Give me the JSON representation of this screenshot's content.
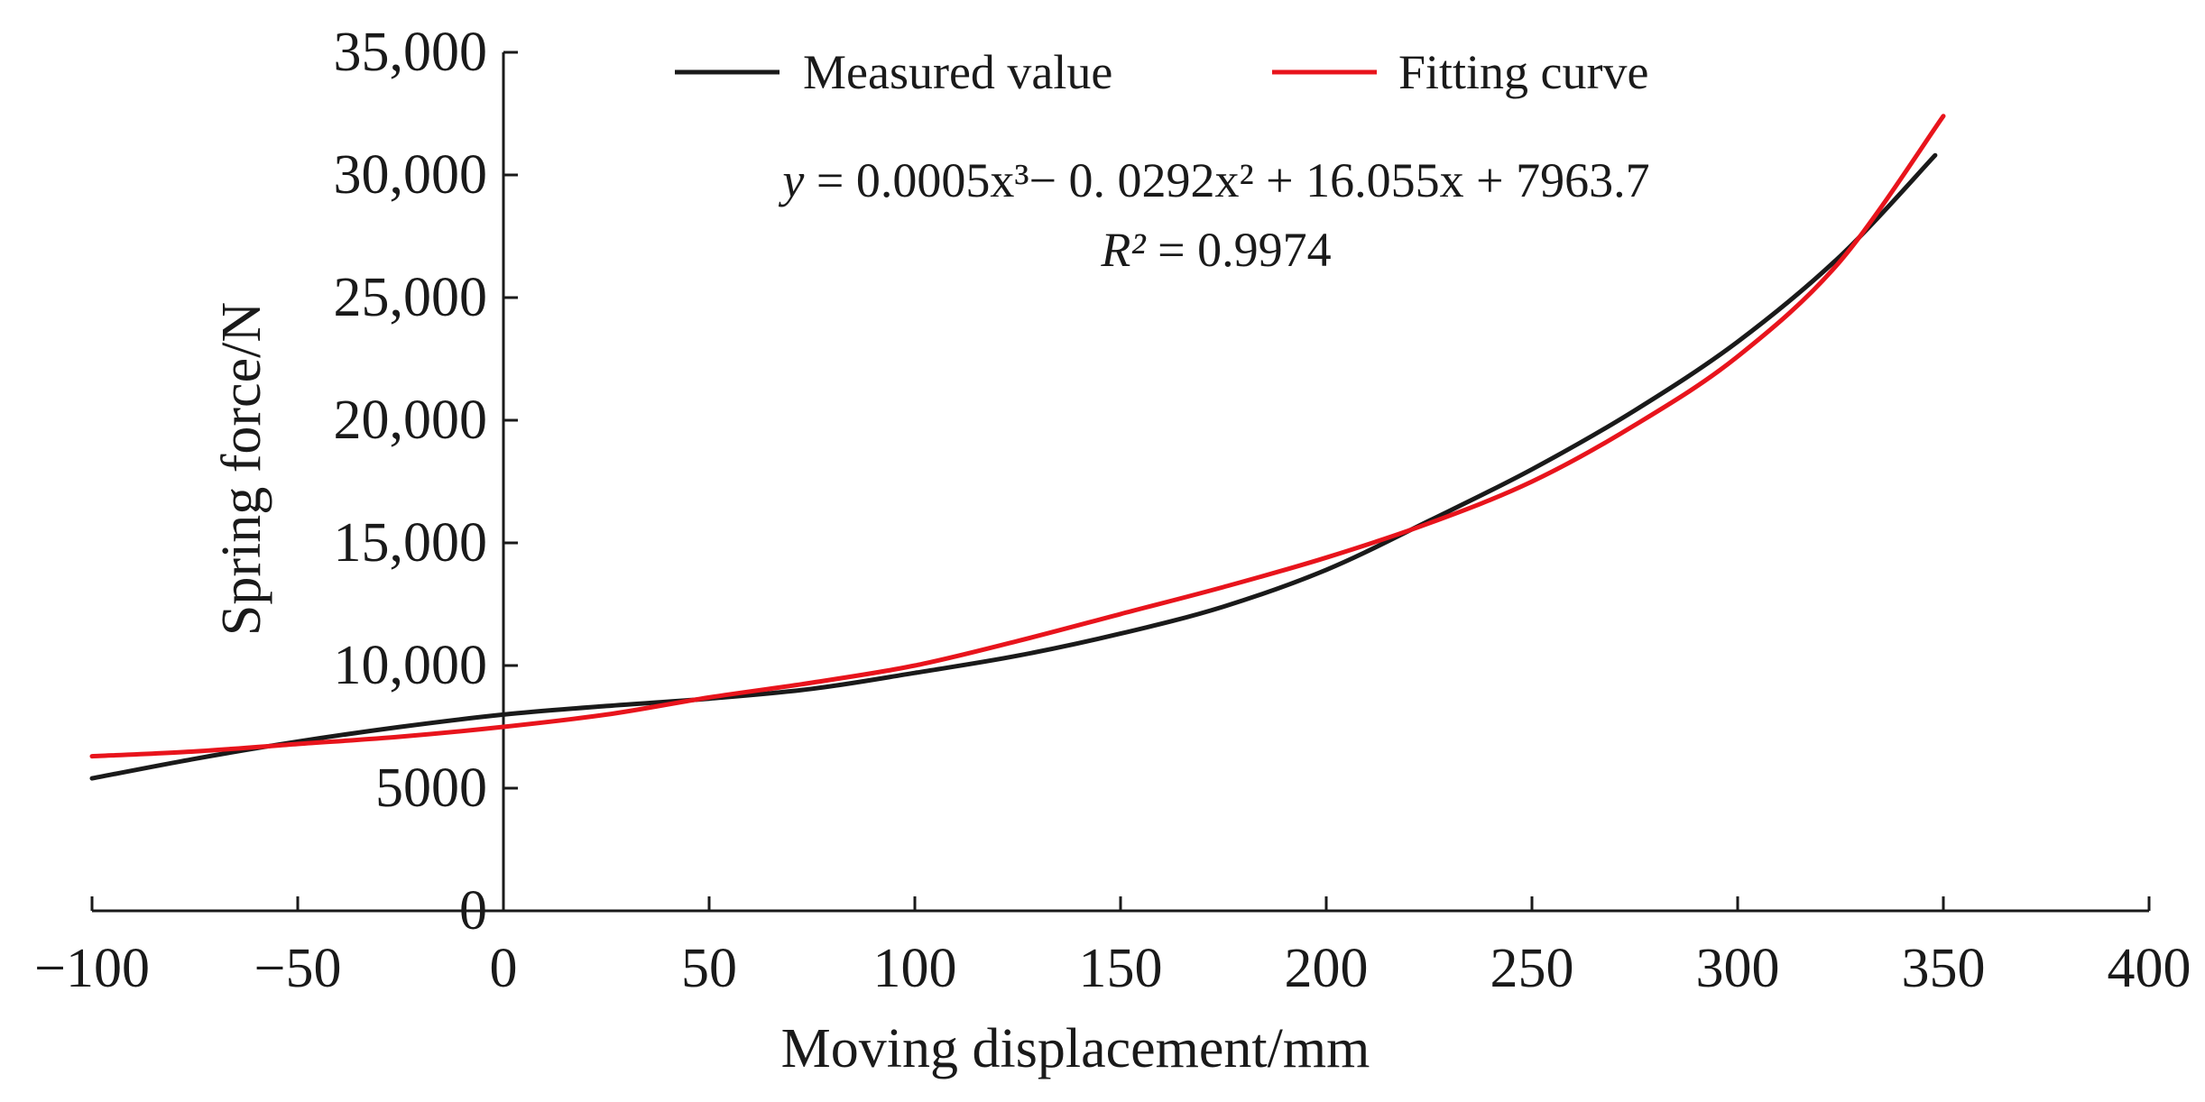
{
  "chart_data": {
    "type": "line",
    "xlabel": "Moving displacement/mm",
    "ylabel": "Spring force/N",
    "xlim": [
      -100,
      400
    ],
    "ylim": [
      0,
      35000
    ],
    "x_ticks": [
      -100,
      -50,
      0,
      50,
      100,
      150,
      200,
      250,
      300,
      350,
      400
    ],
    "x_tick_labels": [
      "−100",
      "−50",
      "0",
      "50",
      "100",
      "150",
      "200",
      "250",
      "300",
      "350",
      "400"
    ],
    "y_ticks": [
      0,
      5000,
      10000,
      15000,
      20000,
      25000,
      30000,
      35000
    ],
    "y_tick_labels": [
      "0",
      "5000",
      "10,000",
      "15,000",
      "20,000",
      "25,000",
      "30,000",
      "35,000"
    ],
    "grid": false,
    "legend_position": "top",
    "colors": {
      "measured": "#1a1a1a",
      "fitted": "#e8141c"
    },
    "series": [
      {
        "name": "Measured value",
        "color": "#1a1a1a",
        "x": [
          -100,
          -75,
          -50,
          -25,
          0,
          25,
          50,
          75,
          100,
          125,
          150,
          175,
          200,
          225,
          250,
          275,
          300,
          325,
          348
        ],
        "values": [
          5400,
          6200,
          6900,
          7500,
          8000,
          8350,
          8650,
          9050,
          9700,
          10400,
          11300,
          12400,
          13900,
          15900,
          18000,
          20400,
          23200,
          26700,
          30800
        ]
      },
      {
        "name": "Fitting curve",
        "color": "#e8141c",
        "x": [
          -100,
          -75,
          -50,
          -25,
          0,
          25,
          50,
          75,
          100,
          125,
          150,
          175,
          200,
          225,
          250,
          275,
          300,
          325,
          350
        ],
        "values": [
          6300,
          6500,
          6800,
          7100,
          7500,
          8000,
          8700,
          9300,
          10000,
          11000,
          12100,
          13200,
          14400,
          15800,
          17500,
          19800,
          22600,
          26500,
          32400
        ]
      }
    ],
    "annotation": {
      "equation_prefix": "y",
      "equation_text": " = 0.0005x³− 0. 0292x² + 16.055x + 7963.7",
      "r2_label": "R²",
      "r2_value": " = 0.9974"
    }
  }
}
